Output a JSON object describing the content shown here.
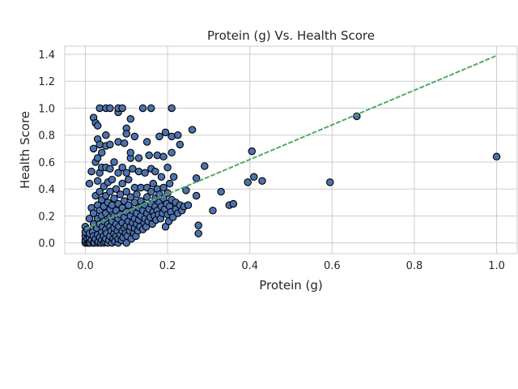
{
  "chart_data": {
    "type": "scatter",
    "title": "Protein (g) Vs. Health Score",
    "xlabel": "Protein (g)",
    "ylabel": "Health Score",
    "xlim": [
      -0.05,
      1.05
    ],
    "ylim": [
      -0.08,
      1.46
    ],
    "xticks": [
      0.0,
      0.2,
      0.4,
      0.6,
      0.8,
      1.0
    ],
    "xtick_labels": [
      "0.0",
      "0.2",
      "0.4",
      "0.6",
      "0.8",
      "1.0"
    ],
    "yticks": [
      0.0,
      0.2,
      0.4,
      0.6,
      0.8,
      1.0,
      1.2,
      1.4
    ],
    "ytick_labels": [
      "0.0",
      "0.2",
      "0.4",
      "0.6",
      "0.8",
      "1.0",
      "1.2",
      "1.4"
    ],
    "grid": true,
    "point_color": "#4c72b0",
    "point_edge_color": "#000000",
    "trend_color": "#55a868",
    "trend_line": {
      "x": [
        0.0,
        1.0
      ],
      "y": [
        0.105,
        1.39
      ]
    },
    "points": [
      [
        0.0,
        0.0
      ],
      [
        0.0,
        0.02
      ],
      [
        0.0,
        0.05
      ],
      [
        0.0,
        0.08
      ],
      [
        0.0,
        0.12
      ],
      [
        0.005,
        0.0
      ],
      [
        0.005,
        0.03
      ],
      [
        0.005,
        0.1
      ],
      [
        0.008,
        0.0
      ],
      [
        0.01,
        0.01
      ],
      [
        0.01,
        0.04
      ],
      [
        0.01,
        0.07
      ],
      [
        0.01,
        0.18
      ],
      [
        0.01,
        0.44
      ],
      [
        0.012,
        0.0
      ],
      [
        0.015,
        0.02
      ],
      [
        0.015,
        0.26
      ],
      [
        0.015,
        0.53
      ],
      [
        0.018,
        0.08
      ],
      [
        0.02,
        0.0
      ],
      [
        0.02,
        0.05
      ],
      [
        0.02,
        0.14
      ],
      [
        0.02,
        0.22
      ],
      [
        0.02,
        0.7
      ],
      [
        0.02,
        0.93
      ],
      [
        0.022,
        0.0
      ],
      [
        0.025,
        0.03
      ],
      [
        0.025,
        0.35
      ],
      [
        0.025,
        0.6
      ],
      [
        0.025,
        0.89
      ],
      [
        0.028,
        0.11
      ],
      [
        0.03,
        0.0
      ],
      [
        0.03,
        0.06
      ],
      [
        0.03,
        0.18
      ],
      [
        0.03,
        0.28
      ],
      [
        0.03,
        0.46
      ],
      [
        0.03,
        0.63
      ],
      [
        0.03,
        0.77
      ],
      [
        0.03,
        0.87
      ],
      [
        0.032,
        0.01
      ],
      [
        0.035,
        0.04
      ],
      [
        0.035,
        0.14
      ],
      [
        0.035,
        0.24
      ],
      [
        0.035,
        0.38
      ],
      [
        0.035,
        0.52
      ],
      [
        0.035,
        0.73
      ],
      [
        0.035,
        1.0
      ],
      [
        0.038,
        0.0
      ],
      [
        0.04,
        0.02
      ],
      [
        0.04,
        0.08
      ],
      [
        0.04,
        0.2
      ],
      [
        0.04,
        0.32
      ],
      [
        0.04,
        0.56
      ],
      [
        0.04,
        0.67
      ],
      [
        0.042,
        0.12
      ],
      [
        0.045,
        0.0
      ],
      [
        0.045,
        0.05
      ],
      [
        0.045,
        0.16
      ],
      [
        0.045,
        0.27
      ],
      [
        0.045,
        0.42
      ],
      [
        0.048,
        0.01
      ],
      [
        0.05,
        0.03
      ],
      [
        0.05,
        0.1
      ],
      [
        0.05,
        0.22
      ],
      [
        0.05,
        0.35
      ],
      [
        0.05,
        0.56
      ],
      [
        0.05,
        0.72
      ],
      [
        0.05,
        0.8
      ],
      [
        0.05,
        1.0
      ],
      [
        0.052,
        0.07
      ],
      [
        0.055,
        0.0
      ],
      [
        0.055,
        0.14
      ],
      [
        0.055,
        0.3
      ],
      [
        0.055,
        0.45
      ],
      [
        0.058,
        0.02
      ],
      [
        0.06,
        0.05
      ],
      [
        0.06,
        0.12
      ],
      [
        0.06,
        0.19
      ],
      [
        0.06,
        0.25
      ],
      [
        0.06,
        0.38
      ],
      [
        0.06,
        0.55
      ],
      [
        0.06,
        0.73
      ],
      [
        0.06,
        1.0
      ],
      [
        0.063,
        0.09
      ],
      [
        0.065,
        0.0
      ],
      [
        0.065,
        0.16
      ],
      [
        0.065,
        0.28
      ],
      [
        0.065,
        0.47
      ],
      [
        0.068,
        0.03
      ],
      [
        0.07,
        0.07
      ],
      [
        0.07,
        0.11
      ],
      [
        0.07,
        0.2
      ],
      [
        0.07,
        0.33
      ],
      [
        0.07,
        0.6
      ],
      [
        0.072,
        0.01
      ],
      [
        0.075,
        0.05
      ],
      [
        0.075,
        0.14
      ],
      [
        0.075,
        0.24
      ],
      [
        0.075,
        0.4
      ],
      [
        0.078,
        0.09
      ],
      [
        0.08,
        0.0
      ],
      [
        0.08,
        0.03
      ],
      [
        0.08,
        0.18
      ],
      [
        0.08,
        0.29
      ],
      [
        0.08,
        0.52
      ],
      [
        0.08,
        0.75
      ],
      [
        0.08,
        0.97
      ],
      [
        0.08,
        1.0
      ],
      [
        0.082,
        0.12
      ],
      [
        0.085,
        0.06
      ],
      [
        0.085,
        0.21
      ],
      [
        0.085,
        0.36
      ],
      [
        0.088,
        0.02
      ],
      [
        0.09,
        0.09
      ],
      [
        0.09,
        0.15
      ],
      [
        0.09,
        0.26
      ],
      [
        0.09,
        0.44
      ],
      [
        0.09,
        0.56
      ],
      [
        0.09,
        1.0
      ],
      [
        0.092,
        0.04
      ],
      [
        0.095,
        0.11
      ],
      [
        0.095,
        0.19
      ],
      [
        0.095,
        0.31
      ],
      [
        0.095,
        0.74
      ],
      [
        0.098,
        0.07
      ],
      [
        0.1,
        0.0
      ],
      [
        0.1,
        0.13
      ],
      [
        0.1,
        0.23
      ],
      [
        0.1,
        0.38
      ],
      [
        0.1,
        0.52
      ],
      [
        0.1,
        0.85
      ],
      [
        0.1,
        0.81
      ],
      [
        0.102,
        0.05
      ],
      [
        0.105,
        0.16
      ],
      [
        0.105,
        0.28
      ],
      [
        0.105,
        0.47
      ],
      [
        0.108,
        0.09
      ],
      [
        0.11,
        0.12
      ],
      [
        0.11,
        0.2
      ],
      [
        0.11,
        0.34
      ],
      [
        0.11,
        0.63
      ],
      [
        0.11,
        0.67
      ],
      [
        0.11,
        0.92
      ],
      [
        0.112,
        0.03
      ],
      [
        0.115,
        0.15
      ],
      [
        0.115,
        0.24
      ],
      [
        0.115,
        0.55
      ],
      [
        0.118,
        0.07
      ],
      [
        0.12,
        0.11
      ],
      [
        0.12,
        0.18
      ],
      [
        0.12,
        0.3
      ],
      [
        0.12,
        0.41
      ],
      [
        0.12,
        0.79
      ],
      [
        0.123,
        0.05
      ],
      [
        0.125,
        0.14
      ],
      [
        0.125,
        0.22
      ],
      [
        0.125,
        0.36
      ],
      [
        0.128,
        0.09
      ],
      [
        0.13,
        0.17
      ],
      [
        0.13,
        0.26
      ],
      [
        0.13,
        0.53
      ],
      [
        0.13,
        0.63
      ],
      [
        0.133,
        0.12
      ],
      [
        0.135,
        0.2
      ],
      [
        0.135,
        0.31
      ],
      [
        0.135,
        0.41
      ],
      [
        0.14,
        0.1
      ],
      [
        0.14,
        0.24
      ],
      [
        0.14,
        1.0
      ],
      [
        0.143,
        0.15
      ],
      [
        0.145,
        0.18
      ],
      [
        0.145,
        0.28
      ],
      [
        0.145,
        0.52
      ],
      [
        0.148,
        0.12
      ],
      [
        0.15,
        0.22
      ],
      [
        0.15,
        0.34
      ],
      [
        0.15,
        0.41
      ],
      [
        0.15,
        0.75
      ],
      [
        0.153,
        0.16
      ],
      [
        0.155,
        0.25
      ],
      [
        0.155,
        0.65
      ],
      [
        0.158,
        0.19
      ],
      [
        0.16,
        0.29
      ],
      [
        0.16,
        0.38
      ],
      [
        0.16,
        0.55
      ],
      [
        0.16,
        1.0
      ],
      [
        0.163,
        0.14
      ],
      [
        0.165,
        0.23
      ],
      [
        0.165,
        0.44
      ],
      [
        0.168,
        0.2
      ],
      [
        0.17,
        0.27
      ],
      [
        0.17,
        0.33
      ],
      [
        0.17,
        0.53
      ],
      [
        0.172,
        0.17
      ],
      [
        0.175,
        0.24
      ],
      [
        0.175,
        0.4
      ],
      [
        0.175,
        0.65
      ],
      [
        0.178,
        0.21
      ],
      [
        0.18,
        0.3
      ],
      [
        0.18,
        0.36
      ],
      [
        0.18,
        0.79
      ],
      [
        0.183,
        0.18
      ],
      [
        0.185,
        0.27
      ],
      [
        0.185,
        0.49
      ],
      [
        0.188,
        0.22
      ],
      [
        0.19,
        0.33
      ],
      [
        0.19,
        0.41
      ],
      [
        0.19,
        0.64
      ],
      [
        0.193,
        0.25
      ],
      [
        0.195,
        0.12
      ],
      [
        0.195,
        0.82
      ],
      [
        0.198,
        0.29
      ],
      [
        0.2,
        0.21
      ],
      [
        0.2,
        0.37
      ],
      [
        0.2,
        0.56
      ],
      [
        0.203,
        0.16
      ],
      [
        0.205,
        0.27
      ],
      [
        0.205,
        0.44
      ],
      [
        0.208,
        0.23
      ],
      [
        0.21,
        0.32
      ],
      [
        0.21,
        0.67
      ],
      [
        0.21,
        0.79
      ],
      [
        0.21,
        1.0
      ],
      [
        0.213,
        0.19
      ],
      [
        0.215,
        0.49
      ],
      [
        0.22,
        0.25
      ],
      [
        0.22,
        0.3
      ],
      [
        0.225,
        0.22
      ],
      [
        0.225,
        0.8
      ],
      [
        0.23,
        0.28
      ],
      [
        0.23,
        0.73
      ],
      [
        0.235,
        0.24
      ],
      [
        0.24,
        0.27
      ],
      [
        0.245,
        0.39
      ],
      [
        0.25,
        0.28
      ],
      [
        0.26,
        0.84
      ],
      [
        0.27,
        0.35
      ],
      [
        0.27,
        0.48
      ],
      [
        0.275,
        0.13
      ],
      [
        0.275,
        0.07
      ],
      [
        0.29,
        0.57
      ],
      [
        0.31,
        0.24
      ],
      [
        0.33,
        0.38
      ],
      [
        0.35,
        0.28
      ],
      [
        0.36,
        0.29
      ],
      [
        0.395,
        0.45
      ],
      [
        0.405,
        0.68
      ],
      [
        0.41,
        0.49
      ],
      [
        0.43,
        0.46
      ],
      [
        0.595,
        0.45
      ],
      [
        0.66,
        0.94
      ],
      [
        1.0,
        0.64
      ]
    ]
  }
}
